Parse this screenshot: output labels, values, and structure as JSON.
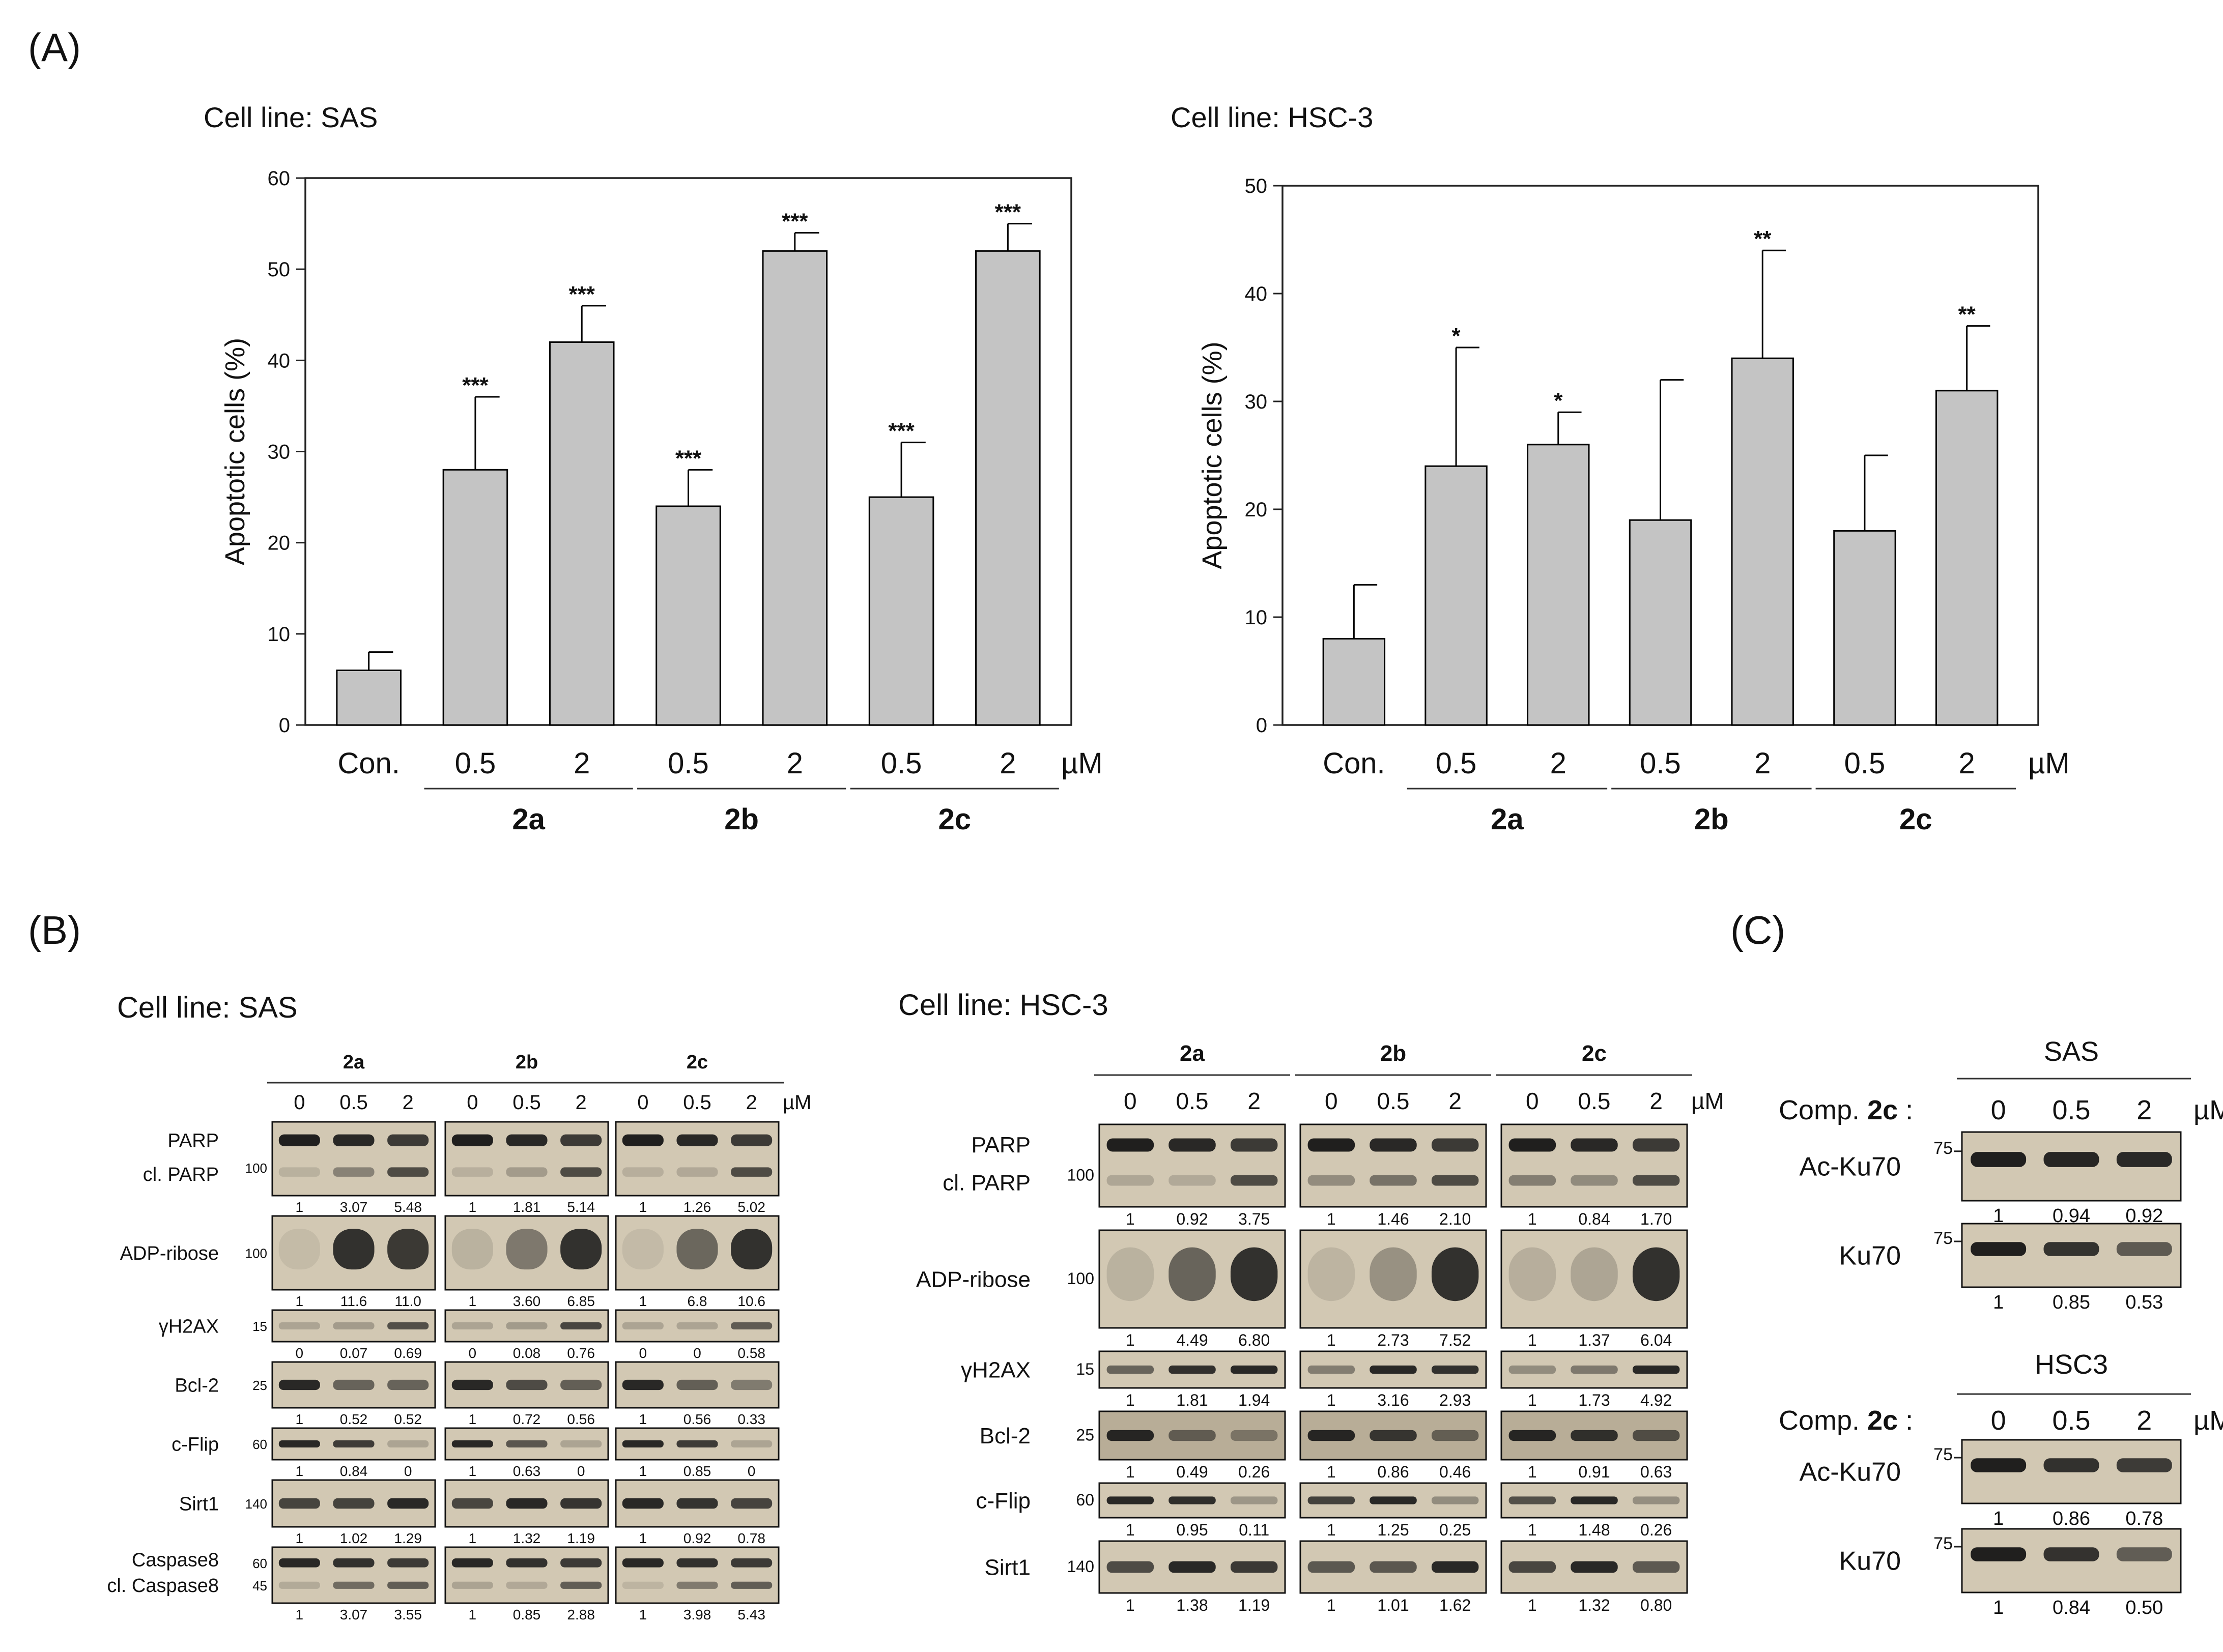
{
  "panel_labels": {
    "A": "(A)",
    "B": "(B)",
    "C": "(C)"
  },
  "chart_data": [
    {
      "type": "bar",
      "title": "Cell line: SAS",
      "ylabel": "Apoptotic cells (%)",
      "ylim": [
        0,
        60
      ],
      "yticks": [
        0,
        10,
        20,
        30,
        40,
        50,
        60
      ],
      "unit": "µM",
      "categories": [
        "Con.",
        "0.5",
        "2",
        "0.5",
        "2",
        "0.5",
        "2"
      ],
      "groups": [
        "2a",
        "2b",
        "2c"
      ],
      "values": [
        6,
        28,
        42,
        24,
        52,
        25,
        52
      ],
      "errors": [
        2,
        8,
        4,
        4,
        2,
        6,
        3
      ],
      "significance": [
        "",
        "***",
        "***",
        "***",
        "***",
        "***",
        "***"
      ]
    },
    {
      "type": "bar",
      "title": "Cell line: HSC-3",
      "ylabel": "Apoptotic cells (%)",
      "ylim": [
        0,
        50
      ],
      "yticks": [
        0,
        10,
        20,
        30,
        40,
        50
      ],
      "unit": "µM",
      "categories": [
        "Con.",
        "0.5",
        "2",
        "0.5",
        "2",
        "0.5",
        "2"
      ],
      "groups": [
        "2a",
        "2b",
        "2c"
      ],
      "values": [
        8,
        24,
        26,
        19,
        34,
        18,
        31
      ],
      "errors": [
        5,
        11,
        3,
        13,
        10,
        7,
        6
      ],
      "significance": [
        "",
        "*",
        "*",
        "",
        "**",
        "",
        "**"
      ]
    }
  ],
  "blot_sas": {
    "title": "Cell line: SAS",
    "groups": [
      "2a",
      "2b",
      "2c"
    ],
    "doses": [
      "0",
      "0.5",
      "2"
    ],
    "unit": "µM",
    "rows": [
      {
        "label": "PARP",
        "label2": "cl. PARP",
        "marker": "100",
        "q": [
          [
            "1",
            "3.07",
            "5.48"
          ],
          [
            "1",
            "1.81",
            "5.14"
          ],
          [
            "1",
            "1.26",
            "5.02"
          ]
        ]
      },
      {
        "label": "ADP-ribose",
        "marker": "100",
        "q": [
          [
            "1",
            "11.6",
            "11.0"
          ],
          [
            "1",
            "3.60",
            "6.85"
          ],
          [
            "1",
            "6.8",
            "10.6"
          ]
        ]
      },
      {
        "label": "γH2AX",
        "marker": "15",
        "q": [
          [
            "0",
            "0.07",
            "0.69"
          ],
          [
            "0",
            "0.08",
            "0.76"
          ],
          [
            "0",
            "0",
            "0.58"
          ]
        ]
      },
      {
        "label": "Bcl-2",
        "marker": "25",
        "q": [
          [
            "1",
            "0.52",
            "0.52"
          ],
          [
            "1",
            "0.72",
            "0.56"
          ],
          [
            "1",
            "0.56",
            "0.33"
          ]
        ]
      },
      {
        "label": "c-Flip",
        "marker": "60",
        "q": [
          [
            "1",
            "0.84",
            "0"
          ],
          [
            "1",
            "0.63",
            "0"
          ],
          [
            "1",
            "0.85",
            "0"
          ]
        ]
      },
      {
        "label": "Sirt1",
        "marker": "140",
        "q": [
          [
            "1",
            "1.02",
            "1.29"
          ],
          [
            "1",
            "1.32",
            "1.19"
          ],
          [
            "1",
            "0.92",
            "0.78"
          ]
        ]
      },
      {
        "label": "Caspase8",
        "label2": "cl. Caspase8",
        "marker": "60",
        "marker2": "45",
        "q": [
          [
            "1",
            "3.07",
            "3.55"
          ],
          [
            "1",
            "0.85",
            "2.88"
          ],
          [
            "1",
            "3.98",
            "5.43"
          ]
        ]
      }
    ]
  },
  "blot_hsc3": {
    "title": "Cell line: HSC-3",
    "groups": [
      "2a",
      "2b",
      "2c"
    ],
    "doses": [
      "0",
      "0.5",
      "2"
    ],
    "unit": "µM",
    "rows": [
      {
        "label": "PARP",
        "label2": "cl. PARP",
        "marker": "100",
        "q": [
          [
            "1",
            "0.92",
            "3.75"
          ],
          [
            "1",
            "1.46",
            "2.10"
          ],
          [
            "1",
            "0.84",
            "1.70"
          ]
        ]
      },
      {
        "label": "ADP-ribose",
        "marker": "100",
        "q": [
          [
            "1",
            "4.49",
            "6.80"
          ],
          [
            "1",
            "2.73",
            "7.52"
          ],
          [
            "1",
            "1.37",
            "6.04"
          ]
        ]
      },
      {
        "label": "γH2AX",
        "marker": "15",
        "q": [
          [
            "1",
            "1.81",
            "1.94"
          ],
          [
            "1",
            "3.16",
            "2.93"
          ],
          [
            "1",
            "1.73",
            "4.92"
          ]
        ]
      },
      {
        "label": "Bcl-2",
        "marker": "25",
        "q": [
          [
            "1",
            "0.49",
            "0.26"
          ],
          [
            "1",
            "0.86",
            "0.46"
          ],
          [
            "1",
            "0.91",
            "0.63"
          ]
        ]
      },
      {
        "label": "c-Flip",
        "marker": "60",
        "q": [
          [
            "1",
            "0.95",
            "0.11"
          ],
          [
            "1",
            "1.25",
            "0.25"
          ],
          [
            "1",
            "1.48",
            "0.26"
          ]
        ]
      },
      {
        "label": "Sirt1",
        "marker": "140",
        "q": [
          [
            "1",
            "1.38",
            "1.19"
          ],
          [
            "1",
            "1.01",
            "1.62"
          ],
          [
            "1",
            "1.32",
            "0.80"
          ]
        ]
      }
    ]
  },
  "blot_c": [
    {
      "title": "SAS",
      "comp_label": "Comp. ",
      "comp_bold": "2c",
      "comp_suffix": " :",
      "doses": [
        "0",
        "0.5",
        "2"
      ],
      "unit": "µM",
      "rows": [
        {
          "label": "Ac-Ku70",
          "marker": "75",
          "q": [
            "1",
            "0.94",
            "0.92"
          ]
        },
        {
          "label": "Ku70",
          "marker": "75",
          "q": [
            "1",
            "0.85",
            "0.53"
          ]
        }
      ]
    },
    {
      "title": "HSC3",
      "comp_label": "Comp. ",
      "comp_bold": "2c",
      "comp_suffix": " :",
      "doses": [
        "0",
        "0.5",
        "2"
      ],
      "unit": "µM",
      "rows": [
        {
          "label": "Ac-Ku70",
          "marker": "75",
          "q": [
            "1",
            "0.86",
            "0.78"
          ]
        },
        {
          "label": "Ku70",
          "marker": "75",
          "q": [
            "1",
            "0.84",
            "0.50"
          ]
        }
      ]
    }
  ]
}
